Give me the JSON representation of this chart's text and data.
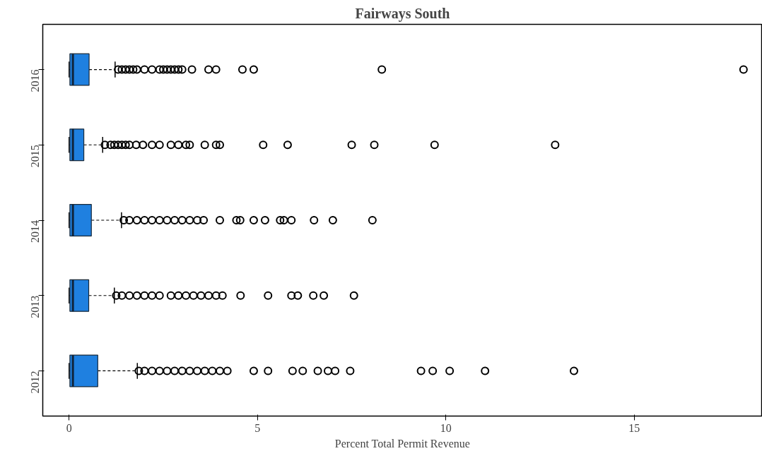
{
  "chart_data": {
    "type": "box",
    "orientation": "horizontal",
    "title": "Fairways South",
    "xlabel": "Percent Total Permit Revenue",
    "categories": [
      "2016",
      "2015",
      "2014",
      "2013",
      "2012"
    ],
    "color": "#1f80e0",
    "grid": false,
    "line_style": "dashed",
    "marker": "circle",
    "xlim": [
      -0.7,
      18.4
    ],
    "xticks": [
      0,
      5,
      10,
      15
    ],
    "boxes": [
      {
        "low": 0,
        "q1": 0.02,
        "median": 0.1,
        "q3": 0.53,
        "high": 1.22,
        "outliers": [
          1.3,
          1.4,
          1.5,
          1.6,
          1.7,
          1.8,
          2.0,
          2.2,
          2.4,
          2.5,
          2.6,
          2.7,
          2.8,
          2.9,
          3.0,
          3.26,
          3.7,
          3.9,
          4.6,
          4.9,
          8.3,
          17.9
        ]
      },
      {
        "low": 0,
        "q1": 0.02,
        "median": 0.1,
        "q3": 0.39,
        "high": 0.89,
        "outliers": [
          0.95,
          1.1,
          1.2,
          1.3,
          1.4,
          1.5,
          1.6,
          1.78,
          1.96,
          2.2,
          2.4,
          2.7,
          2.9,
          3.1,
          3.2,
          3.6,
          3.9,
          4.0,
          5.15,
          5.8,
          7.5,
          8.1,
          9.7,
          12.9
        ]
      },
      {
        "low": 0,
        "q1": 0.02,
        "median": 0.1,
        "q3": 0.59,
        "high": 1.39,
        "outliers": [
          1.45,
          1.6,
          1.8,
          2.0,
          2.2,
          2.4,
          2.6,
          2.8,
          3.0,
          3.2,
          3.4,
          3.57,
          4.0,
          4.44,
          4.54,
          4.9,
          5.2,
          5.6,
          5.7,
          5.9,
          6.5,
          7.0,
          8.05
        ]
      },
      {
        "low": 0,
        "q1": 0.02,
        "median": 0.1,
        "q3": 0.52,
        "high": 1.2,
        "outliers": [
          1.25,
          1.4,
          1.6,
          1.8,
          2.0,
          2.2,
          2.4,
          2.7,
          2.9,
          3.1,
          3.3,
          3.5,
          3.7,
          3.9,
          4.07,
          4.55,
          5.28,
          5.9,
          6.07,
          6.48,
          6.76,
          7.56
        ]
      },
      {
        "low": 0,
        "q1": 0.02,
        "median": 0.1,
        "q3": 0.76,
        "high": 1.81,
        "outliers": [
          1.85,
          2.0,
          2.2,
          2.4,
          2.6,
          2.8,
          3.0,
          3.2,
          3.4,
          3.6,
          3.8,
          4.0,
          4.2,
          4.9,
          5.28,
          5.93,
          6.2,
          6.6,
          6.87,
          7.06,
          7.46,
          9.34,
          9.65,
          10.1,
          11.04,
          13.4
        ]
      }
    ]
  }
}
